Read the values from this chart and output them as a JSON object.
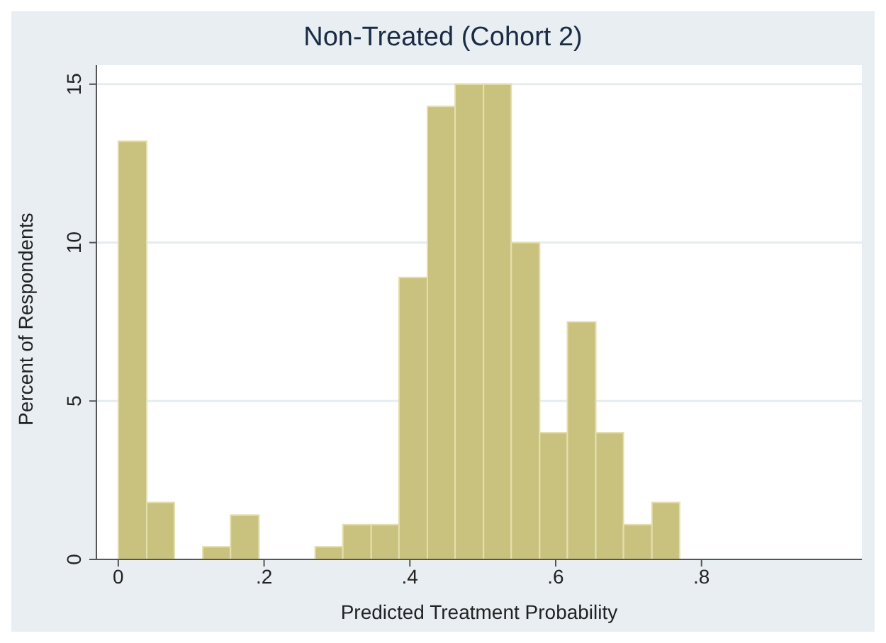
{
  "chart_data": {
    "type": "histogram",
    "title": "Non-Treated (Cohort 2)",
    "xlabel": "Predicted Treatment Probability",
    "ylabel": "Percent of Respondents",
    "bins": [
      0,
      0.039,
      0.077,
      0.116,
      0.154,
      0.193,
      0.27,
      0.308,
      0.347,
      0.385,
      0.424,
      0.462,
      0.501,
      0.539,
      0.578,
      0.616,
      0.655,
      0.693,
      0.732,
      0.77
    ],
    "values": [
      13.2,
      1.8,
      0,
      0.4,
      1.4,
      0,
      0.4,
      1.1,
      1.1,
      8.9,
      14.3,
      15,
      15,
      10,
      4,
      7.5,
      4,
      1.1,
      1.8
    ],
    "color": "#c9c27f",
    "xlim": [
      -0.03,
      1.02
    ],
    "xticks": [
      {
        "value": 0,
        "label": "0"
      },
      {
        "value": 0.2,
        "label": ".2"
      },
      {
        "value": 0.4,
        "label": ".4"
      },
      {
        "value": 0.6,
        "label": ".6"
      },
      {
        "value": 0.8,
        "label": ".8"
      }
    ],
    "ylim": [
      0,
      15.6
    ],
    "yticks": [
      0,
      5,
      10,
      15
    ],
    "grid": "y"
  }
}
